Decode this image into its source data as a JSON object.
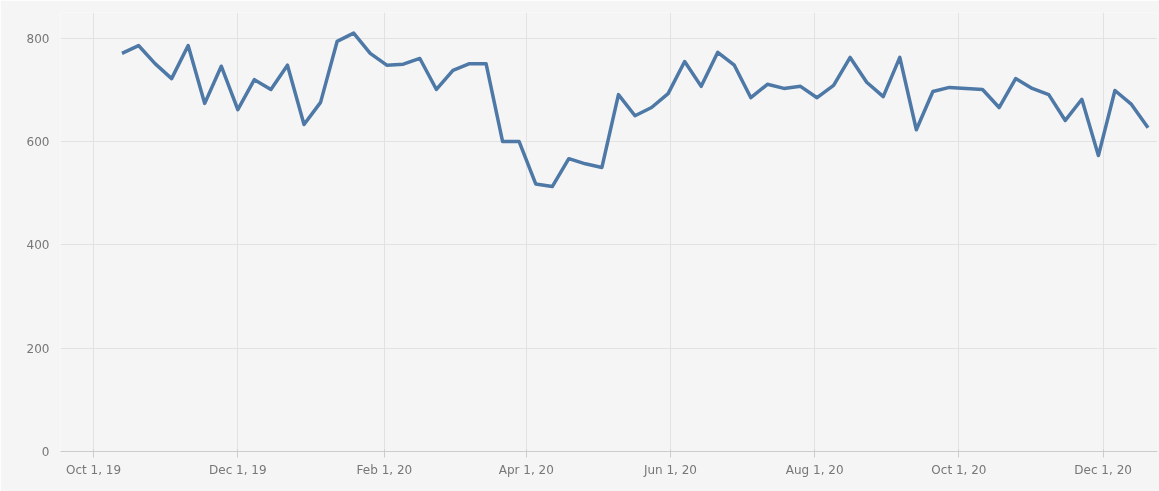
{
  "chart_data": {
    "type": "line",
    "xlim": [
      "2019-09-17",
      "2020-12-24"
    ],
    "ylim": [
      0,
      850
    ],
    "xticks": [
      {
        "value": "2019-10-01",
        "label": "Oct 1, 19"
      },
      {
        "value": "2019-12-01",
        "label": "Dec 1, 19"
      },
      {
        "value": "2020-02-01",
        "label": "Feb 1, 20"
      },
      {
        "value": "2020-04-01",
        "label": "Apr 1, 20"
      },
      {
        "value": "2020-06-01",
        "label": "Jun 1, 20"
      },
      {
        "value": "2020-08-01",
        "label": "Aug 1, 20"
      },
      {
        "value": "2020-10-01",
        "label": "Oct 1, 20"
      },
      {
        "value": "2020-12-01",
        "label": "Dec 1, 20"
      }
    ],
    "yticks": [
      0,
      200,
      400,
      600,
      800
    ],
    "grid": true,
    "marker": "none",
    "line_style": "solid",
    "series": [
      {
        "color": "#4e79a7",
        "x": [
          "2019-10-13",
          "2019-10-20",
          "2019-10-27",
          "2019-11-03",
          "2019-11-10",
          "2019-11-17",
          "2019-11-24",
          "2019-12-01",
          "2019-12-08",
          "2019-12-15",
          "2019-12-22",
          "2019-12-29",
          "2020-01-05",
          "2020-01-12",
          "2020-01-19",
          "2020-01-26",
          "2020-02-02",
          "2020-02-09",
          "2020-02-16",
          "2020-02-23",
          "2020-03-01",
          "2020-03-08",
          "2020-03-15",
          "2020-03-22",
          "2020-03-29",
          "2020-04-05",
          "2020-04-12",
          "2020-04-19",
          "2020-04-26",
          "2020-05-03",
          "2020-05-10",
          "2020-05-17",
          "2020-05-24",
          "2020-05-31",
          "2020-06-07",
          "2020-06-14",
          "2020-06-21",
          "2020-06-28",
          "2020-07-05",
          "2020-07-12",
          "2020-07-19",
          "2020-07-26",
          "2020-08-02",
          "2020-08-09",
          "2020-08-16",
          "2020-08-23",
          "2020-08-30",
          "2020-09-06",
          "2020-09-13",
          "2020-09-20",
          "2020-09-27",
          "2020-10-04",
          "2020-10-11",
          "2020-10-18",
          "2020-10-25",
          "2020-11-01",
          "2020-11-08",
          "2020-11-15",
          "2020-11-22",
          "2020-11-29",
          "2020-12-06",
          "2020-12-13",
          "2020-12-20"
        ],
        "values": [
          771,
          786,
          751,
          722,
          786,
          674,
          746,
          662,
          720,
          701,
          748,
          633,
          676,
          794,
          810,
          771,
          748,
          750,
          761,
          701,
          738,
          751,
          751,
          600,
          600,
          518,
          513,
          567,
          557,
          550,
          691,
          650,
          666,
          693,
          755,
          707,
          773,
          748,
          685,
          711,
          703,
          707,
          685,
          709,
          763,
          715,
          687,
          763,
          623,
          697,
          705,
          703,
          701,
          666,
          722,
          703,
          691,
          641,
          682,
          573,
          699,
          672,
          627
        ]
      }
    ]
  }
}
